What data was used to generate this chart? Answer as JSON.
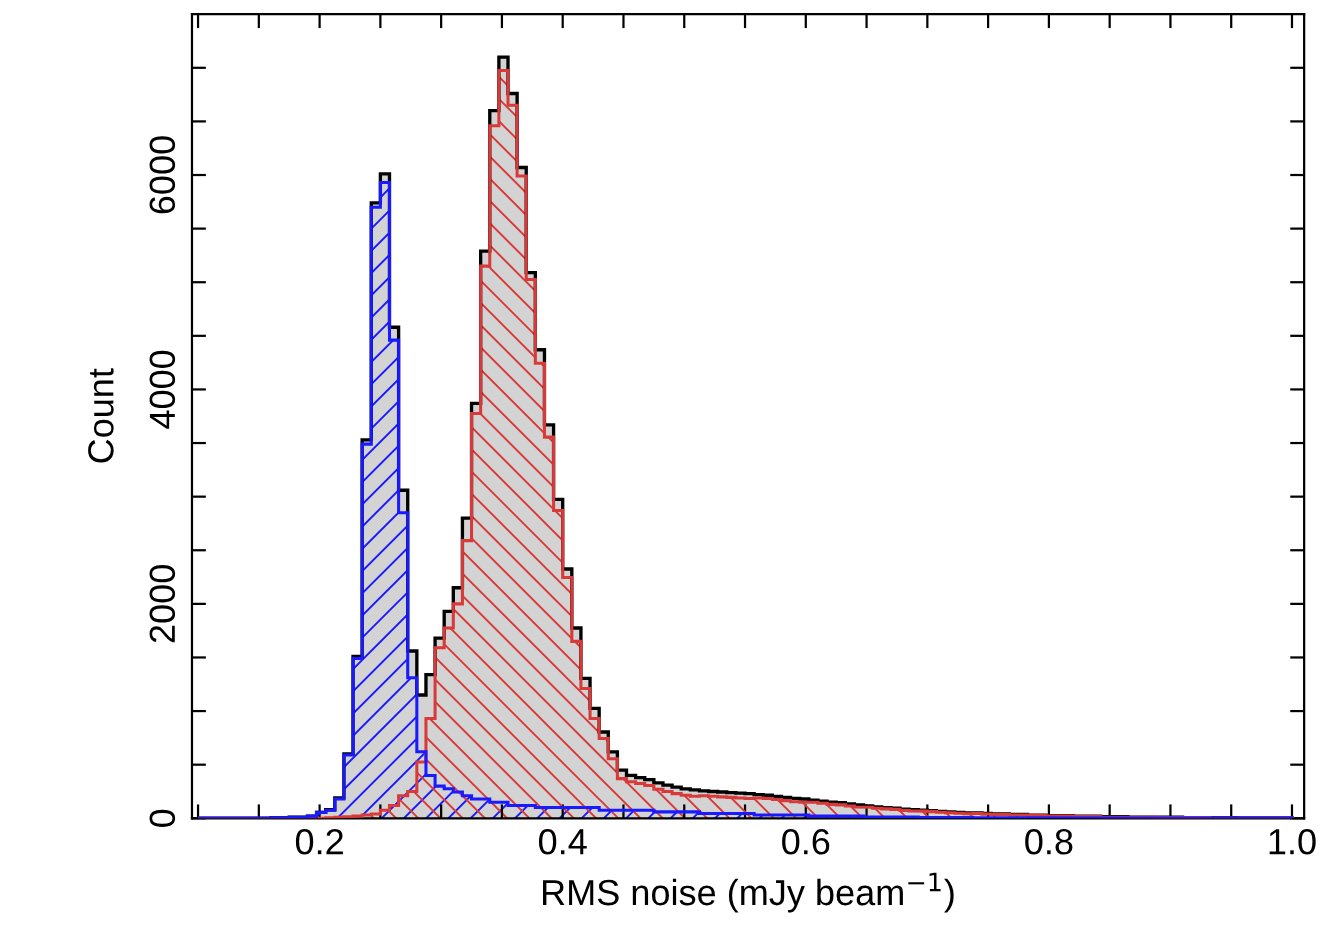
{
  "chart_data": {
    "type": "histogram",
    "xlabel": "RMS noise (mJy beam$^{−1}$)",
    "ylabel": "Count",
    "bins": [
      0.1,
      0.1075,
      0.115,
      0.1225,
      0.13,
      0.1375,
      0.145,
      0.1525,
      0.16,
      0.1675,
      0.175,
      0.1825,
      0.19,
      0.1975,
      0.205,
      0.2125,
      0.22,
      0.2275,
      0.235,
      0.2425,
      0.25,
      0.2575,
      0.265,
      0.2725,
      0.28,
      0.2875,
      0.295,
      0.3025,
      0.31,
      0.3175,
      0.325,
      0.3325,
      0.34,
      0.3475,
      0.355,
      0.3625,
      0.37,
      0.3775,
      0.385,
      0.3925,
      0.4,
      0.4075,
      0.415,
      0.4225,
      0.43,
      0.4375,
      0.445,
      0.4525,
      0.46,
      0.4675,
      0.475,
      0.4825,
      0.49,
      0.4975,
      0.505,
      0.5125,
      0.52,
      0.5275,
      0.535,
      0.5425,
      0.55,
      0.5575,
      0.565,
      0.5725,
      0.58,
      0.5875,
      0.595,
      0.6025,
      0.61,
      0.6175,
      0.625,
      0.6325,
      0.64,
      0.6475,
      0.655,
      0.6625,
      0.67,
      0.6775,
      0.685,
      0.6925,
      0.7,
      0.7075,
      0.715,
      0.7225,
      0.73,
      0.7375,
      0.745,
      0.7525,
      0.76,
      0.7675,
      0.775,
      0.7825,
      0.79,
      0.7975,
      0.805,
      0.8125,
      0.82,
      0.8275,
      0.835,
      0.8425,
      0.85,
      0.8575,
      0.865,
      0.8725,
      0.88,
      0.8875,
      0.895,
      0.9025,
      0.91,
      0.9175,
      0.925,
      0.9325,
      0.94,
      0.9475,
      0.955,
      0.9625,
      0.97,
      0.9775,
      0.985,
      0.9925,
      1.0
    ],
    "series": [
      {
        "color": "#d3d3d3",
        "values": [
          0,
          0,
          0,
          0,
          0,
          0,
          0,
          0,
          5,
          5,
          10,
          10,
          20,
          55,
          80,
          190,
          600,
          1510,
          3530,
          5740,
          6010,
          4580,
          3060,
          1560,
          1150,
          1340,
          1680,
          1930,
          2150,
          2800,
          3870,
          5290,
          6600,
          7100,
          6760,
          6070,
          5090,
          4370,
          3670,
          2975,
          2325,
          1775,
          1305,
          1025,
          805,
          620,
          450,
          400,
          380,
          360,
          330,
          310,
          290,
          275,
          265,
          255,
          250,
          245,
          240,
          235,
          230,
          220,
          215,
          205,
          195,
          185,
          180,
          170,
          160,
          150,
          145,
          135,
          125,
          115,
          105,
          100,
          95,
          85,
          80,
          75,
          70,
          65,
          60,
          55,
          50,
          50,
          45,
          40,
          40,
          35,
          35,
          30,
          30,
          25,
          25,
          25,
          20,
          20,
          20,
          15,
          15,
          15,
          12,
          12,
          12,
          10,
          10,
          10,
          8,
          8,
          8,
          6,
          6,
          6,
          5,
          5,
          5,
          4,
          4,
          4
        ]
      },
      {
        "color": "#d83a3a",
        "values": [
          0,
          0,
          0,
          0,
          0,
          0,
          0,
          0,
          0,
          0,
          0,
          0,
          0,
          0,
          5,
          10,
          15,
          20,
          30,
          40,
          75,
          120,
          210,
          250,
          525,
          930,
          1590,
          1775,
          2000,
          2590,
          3775,
          5150,
          6460,
          6975,
          6650,
          5990,
          5025,
          4245,
          3555,
          2870,
          2245,
          1650,
          1210,
          930,
          745,
          555,
          370,
          340,
          325,
          305,
          270,
          250,
          230,
          215,
          205,
          210,
          205,
          200,
          195,
          190,
          185,
          190,
          185,
          175,
          165,
          155,
          150,
          150,
          140,
          130,
          125,
          115,
          105,
          103,
          93,
          88,
          83,
          73,
          68,
          67,
          62,
          57,
          52,
          47,
          42,
          45,
          40,
          35,
          35,
          30,
          30,
          27,
          27,
          22,
          22,
          22,
          17,
          17,
          17,
          12,
          12,
          13,
          10,
          10,
          10,
          8,
          8,
          8,
          6,
          6,
          6,
          4,
          4,
          4,
          3,
          3,
          3,
          2,
          2,
          2
        ]
      },
      {
        "color": "#1a1aff",
        "values": [
          0,
          0,
          0,
          0,
          0,
          0,
          0,
          0,
          5,
          5,
          10,
          10,
          20,
          55,
          75,
          180,
          590,
          1490,
          3490,
          5700,
          5930,
          4460,
          2850,
          1310,
          620,
          400,
          300,
          275,
          245,
          210,
          180,
          180,
          150,
          150,
          120,
          120,
          120,
          100,
          100,
          100,
          100,
          100,
          100,
          100,
          75,
          75,
          75,
          75,
          75,
          75,
          60,
          60,
          60,
          60,
          60,
          45,
          45,
          45,
          45,
          45,
          45,
          30,
          30,
          30,
          30,
          30,
          30,
          20,
          20,
          20,
          20,
          20,
          20,
          12,
          12,
          12,
          12,
          12,
          12,
          8,
          8,
          8,
          8,
          8,
          8,
          5,
          5,
          5,
          5,
          5,
          5,
          3,
          3,
          3,
          3,
          3,
          3,
          3,
          3,
          3,
          3,
          2,
          2,
          2,
          2,
          2,
          2,
          2,
          2,
          2,
          2,
          2,
          2,
          2,
          2,
          2,
          2,
          2,
          2,
          2
        ]
      }
    ],
    "xlim": [
      0.095,
      1.01
    ],
    "xticks": [
      {
        "value": 0.1,
        "label": null
      },
      {
        "value": 0.15,
        "label": null
      },
      0.2,
      {
        "value": 0.25,
        "label": null
      },
      {
        "value": 0.3,
        "label": null
      },
      {
        "value": 0.35,
        "label": null
      },
      0.4,
      {
        "value": 0.45,
        "label": null
      },
      {
        "value": 0.5,
        "label": null
      },
      {
        "value": 0.55,
        "label": null
      },
      0.6,
      {
        "value": 0.65,
        "label": null
      },
      {
        "value": 0.7,
        "label": null
      },
      {
        "value": 0.75,
        "label": null
      },
      0.8,
      {
        "value": 0.85,
        "label": null
      },
      {
        "value": 0.9,
        "label": null
      },
      {
        "value": 0.95,
        "label": null
      },
      {
        "value": 1.0,
        "label": "1.0"
      }
    ],
    "ylim": [
      0,
      7500
    ],
    "yticks": [
      0,
      {
        "value": 500,
        "label": null
      },
      {
        "value": 1000,
        "label": null
      },
      {
        "value": 1500,
        "label": null
      },
      2000,
      {
        "value": 2500,
        "label": null
      },
      {
        "value": 3000,
        "label": null
      },
      {
        "value": 3500,
        "label": null
      },
      4000,
      {
        "value": 4500,
        "label": null
      },
      {
        "value": 5000,
        "label": null
      },
      {
        "value": 5500,
        "label": null
      },
      6000,
      {
        "value": 6500,
        "label": null
      },
      {
        "value": 7000,
        "label": null
      }
    ],
    "grid": false,
    "legend": false
  }
}
